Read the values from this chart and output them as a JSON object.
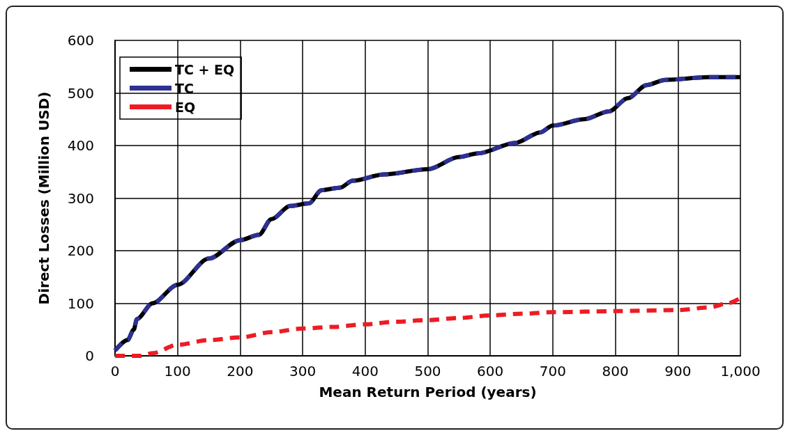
{
  "chart_data": {
    "type": "line",
    "xlabel": "Mean Return Period (years)",
    "ylabel": "Direct Losses (Million USD)",
    "xlim": [
      0,
      1000
    ],
    "xticks": [
      0,
      100,
      200,
      300,
      400,
      500,
      600,
      700,
      800,
      900,
      {
        "value": 1000,
        "label": "1,000"
      }
    ],
    "ylim": [
      0,
      600
    ],
    "yticks": [
      0,
      100,
      200,
      300,
      400,
      500,
      600
    ],
    "grid": true,
    "legend": "top left",
    "marker": "none",
    "series": [
      {
        "name": "TC + EQ",
        "color": "#000000",
        "line_style": "solid",
        "x": [
          0,
          20,
          30,
          35,
          60,
          100,
          150,
          200,
          230,
          250,
          280,
          310,
          330,
          360,
          380,
          430,
          500,
          550,
          580,
          640,
          680,
          700,
          750,
          790,
          820,
          850,
          880,
          950,
          1000
        ],
        "values": [
          10,
          30,
          50,
          70,
          100,
          135,
          185,
          220,
          230,
          260,
          285,
          290,
          315,
          320,
          333,
          345,
          355,
          378,
          385,
          405,
          425,
          438,
          450,
          465,
          490,
          515,
          525,
          530,
          530
        ]
      },
      {
        "name": "TC",
        "color": "#2e3192",
        "line_style": "dashed",
        "x": [
          0,
          20,
          30,
          35,
          60,
          100,
          150,
          200,
          230,
          250,
          280,
          310,
          330,
          360,
          380,
          430,
          500,
          550,
          580,
          640,
          680,
          700,
          750,
          790,
          820,
          850,
          880,
          950,
          1000
        ],
        "values": [
          10,
          30,
          50,
          70,
          100,
          135,
          185,
          220,
          230,
          260,
          285,
          290,
          315,
          320,
          333,
          345,
          355,
          378,
          385,
          405,
          425,
          438,
          450,
          465,
          490,
          515,
          525,
          530,
          530
        ]
      },
      {
        "name": "EQ",
        "color": "#ed1c24",
        "line_style": "dashed",
        "x": [
          0,
          40,
          60,
          100,
          150,
          200,
          250,
          300,
          350,
          400,
          450,
          500,
          550,
          600,
          650,
          700,
          800,
          900,
          950,
          980,
          1000
        ],
        "values": [
          0,
          0,
          5,
          21,
          30,
          35,
          45,
          52,
          55,
          60,
          65,
          68,
          72,
          77,
          80,
          83,
          85,
          87,
          92,
          100,
          110
        ]
      }
    ]
  }
}
